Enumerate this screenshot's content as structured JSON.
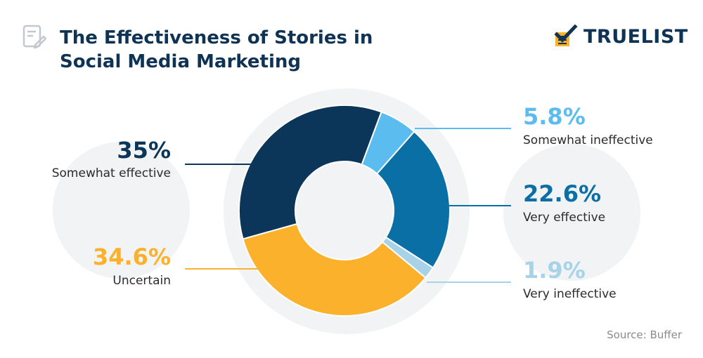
{
  "header": {
    "title_line1": "The Effectiveness of Stories in",
    "title_line2": "Social Media Marketing"
  },
  "brand": {
    "name": "TRUELIST"
  },
  "source": "Source: Buffer",
  "colors": {
    "navy": "#0b3559",
    "light_blue": "#5bbcf0",
    "mid_blue": "#0a6fa5",
    "pale_blue": "#a7d2e8",
    "yellow": "#fbb12b",
    "title": "#0e3354"
  },
  "chart_data": {
    "type": "pie",
    "variant": "donut",
    "title": "The Effectiveness of Stories in Social Media Marketing",
    "slices": [
      {
        "label": "Somewhat ineffective",
        "value": 5.8,
        "display": "5.8%",
        "color": "#5bbcf0"
      },
      {
        "label": "Very effective",
        "value": 22.6,
        "display": "22.6%",
        "color": "#0a6fa5"
      },
      {
        "label": "Very ineffective",
        "value": 1.9,
        "display": "1.9%",
        "color": "#a7d2e8"
      },
      {
        "label": "Uncertain",
        "value": 34.6,
        "display": "34.6%",
        "color": "#fbb12b"
      },
      {
        "label": "Somewhat effective",
        "value": 35,
        "display": "35%",
        "color": "#0b3559"
      }
    ]
  }
}
